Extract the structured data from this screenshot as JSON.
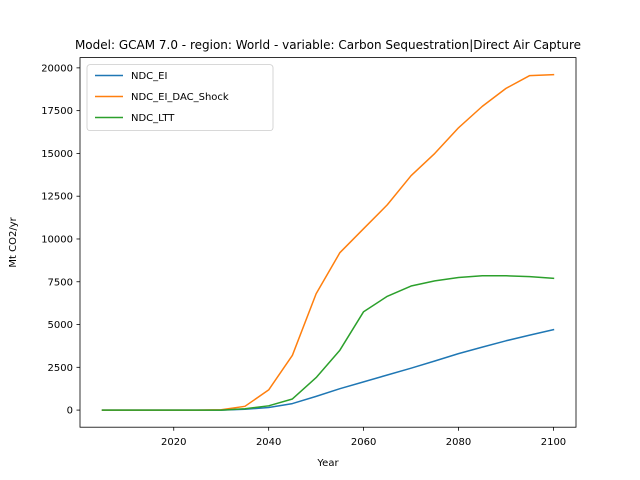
{
  "chart_data": {
    "type": "line",
    "title": "Model: GCAM 7.0 - region: World - variable: Carbon Sequestration|Direct Air Capture",
    "xlabel": "Year",
    "ylabel": "Mt CO2/yr",
    "xlim": [
      2000.25,
      2104.75
    ],
    "ylim": [
      -1000,
      20600
    ],
    "xticks": [
      2020,
      2040,
      2060,
      2080,
      2100
    ],
    "yticks": [
      0,
      2500,
      5000,
      7500,
      10000,
      12500,
      15000,
      17500,
      20000
    ],
    "grid": false,
    "legend_position": "top-left",
    "x": [
      2005,
      2010,
      2015,
      2020,
      2025,
      2030,
      2035,
      2040,
      2045,
      2050,
      2055,
      2060,
      2065,
      2070,
      2075,
      2080,
      2085,
      2090,
      2095,
      2100
    ],
    "series": [
      {
        "name": "NDC_EI",
        "color": "#1f77b4",
        "values": [
          0,
          0,
          0,
          0,
          0,
          0,
          50,
          150,
          380,
          800,
          1250,
          1650,
          2050,
          2450,
          2870,
          3300,
          3680,
          4050,
          4380,
          4700
        ]
      },
      {
        "name": "NDC_EI_DAC_Shock",
        "color": "#ff7f0e",
        "values": [
          0,
          0,
          0,
          0,
          0,
          20,
          220,
          1180,
          3200,
          6800,
          9200,
          10600,
          12000,
          13700,
          15000,
          16500,
          17750,
          18800,
          19550,
          19600
        ]
      },
      {
        "name": "NDC_LTT",
        "color": "#2ca02c",
        "values": [
          0,
          0,
          0,
          0,
          0,
          0,
          80,
          250,
          650,
          1900,
          3500,
          5750,
          6650,
          7250,
          7550,
          7750,
          7850,
          7850,
          7800,
          7700
        ]
      }
    ]
  }
}
